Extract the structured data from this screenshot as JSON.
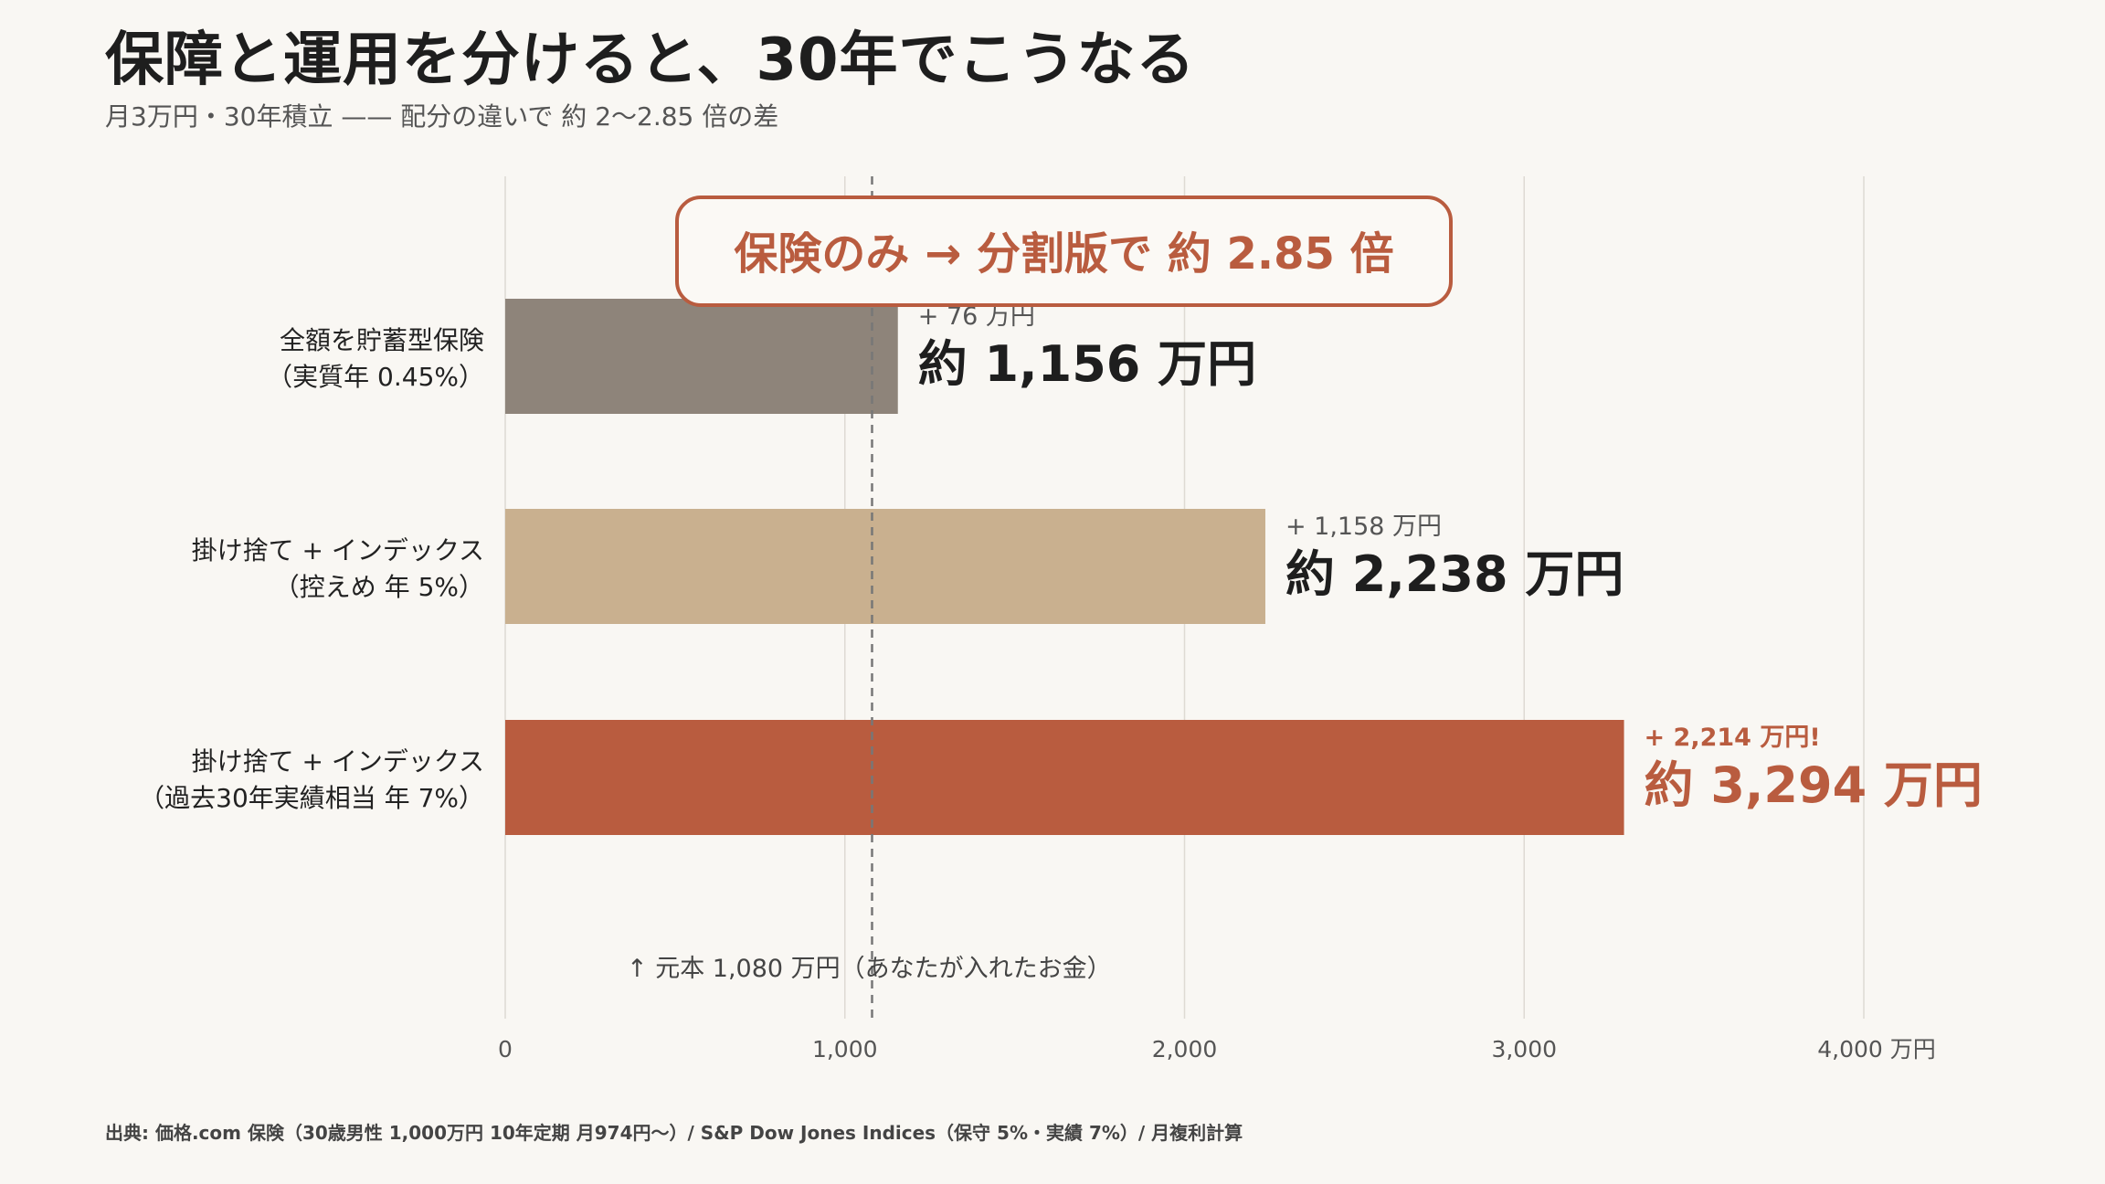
{
  "title": "保障と運用を分けると、30年でこうなる",
  "subtitle": "月3万円・30年積立 —— 配分の違いで 約 2〜2.85 倍の差",
  "source": "出典: 価格.com 保険（30歳男性 1,000万円 10年定期 月974円〜）/ S&P Dow Jones Indices（保守 5%・実績 7%）/ 月複利計算",
  "callout": "保険のみ → 分割版で 約 2.85 倍",
  "colors": {
    "background": "#f9f7f3",
    "accent": "#b95c3f",
    "bar_insurance": "#8e847a",
    "bar_conservative": "#c9b08f",
    "bar_historical": "#b95c3f",
    "grid": "#dedad3",
    "principal_line": "#777777"
  },
  "chart_data": {
    "type": "bar",
    "orientation": "horizontal",
    "categories": [
      [
        "全額を貯蓄型保険",
        "（実質年 0.45%）"
      ],
      [
        "掛け捨て + インデックス",
        "（控えめ 年 5%）"
      ],
      [
        "掛け捨て + インデックス",
        "（過去30年実績相当 年 7%）"
      ]
    ],
    "values": [
      1156,
      2238,
      3294
    ],
    "value_labels": [
      "約 1,156 万円",
      "約 2,238 万円",
      "約 3,294 万円"
    ],
    "gain_labels": [
      "+ 76 万円",
      "+ 1,158 万円",
      "+ 2,214 万円!"
    ],
    "xlim": [
      0,
      4000
    ],
    "xticks": [
      0,
      1000,
      2000,
      3000,
      4000
    ],
    "xtick_labels": [
      "0",
      "1,000",
      "2,000",
      "3,000",
      "4,000"
    ],
    "x_unit": "万円",
    "grid": true,
    "reference_line": {
      "value": 1080,
      "label": "↑ 元本 1,080 万円（あなたが入れたお金）"
    }
  }
}
